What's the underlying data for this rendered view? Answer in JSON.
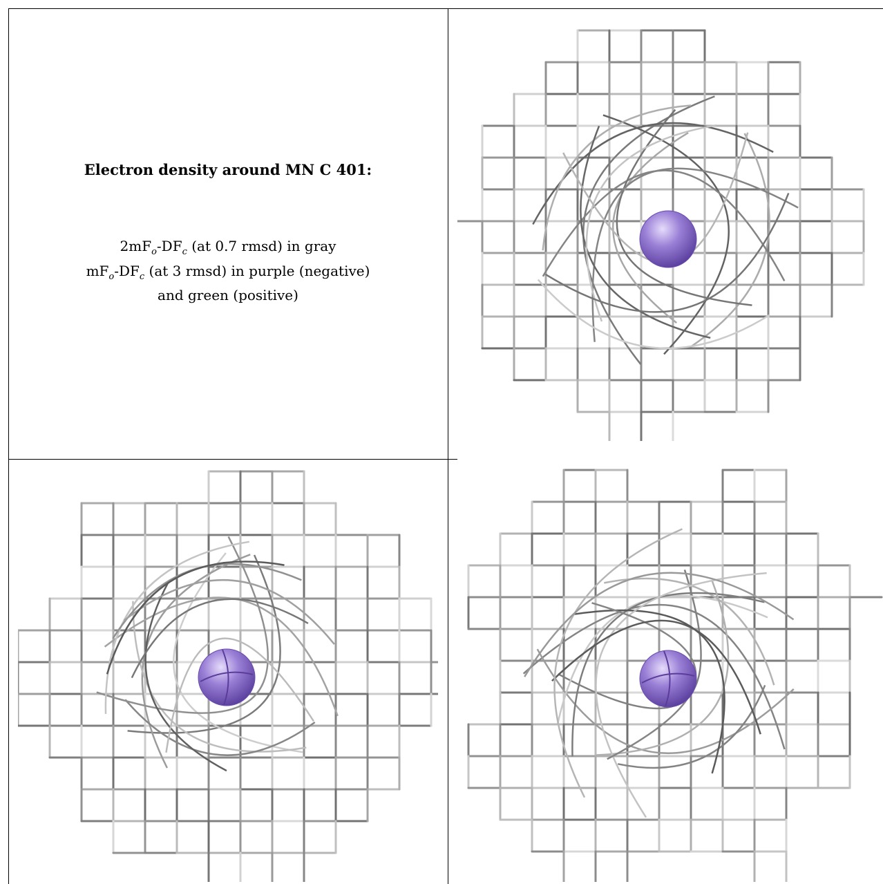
{
  "caption": {
    "title": "Electron density around MN C 401:",
    "line1": {
      "pre": "2mF",
      "sub1": "o",
      "mid": "-DF",
      "sub2": "c",
      "post": " (at 0.7 rmsd) in gray"
    },
    "line2": {
      "pre": "mF",
      "sub1": "o",
      "mid": "-DF",
      "sub2": "c",
      "post": " (at 3 rmsd) in purple (negative)"
    },
    "line3": "and green (positive)"
  },
  "views": [
    {
      "name": "view-top-right",
      "atom_color": "#9A7FD6",
      "mesh_color": "#b5b5b5"
    },
    {
      "name": "view-bottom-left",
      "atom_color": "#9A7FD6",
      "mesh_color": "#b5b5b5"
    },
    {
      "name": "view-bottom-right",
      "atom_color": "#9A7FD6",
      "mesh_color": "#b5b5b5"
    }
  ]
}
